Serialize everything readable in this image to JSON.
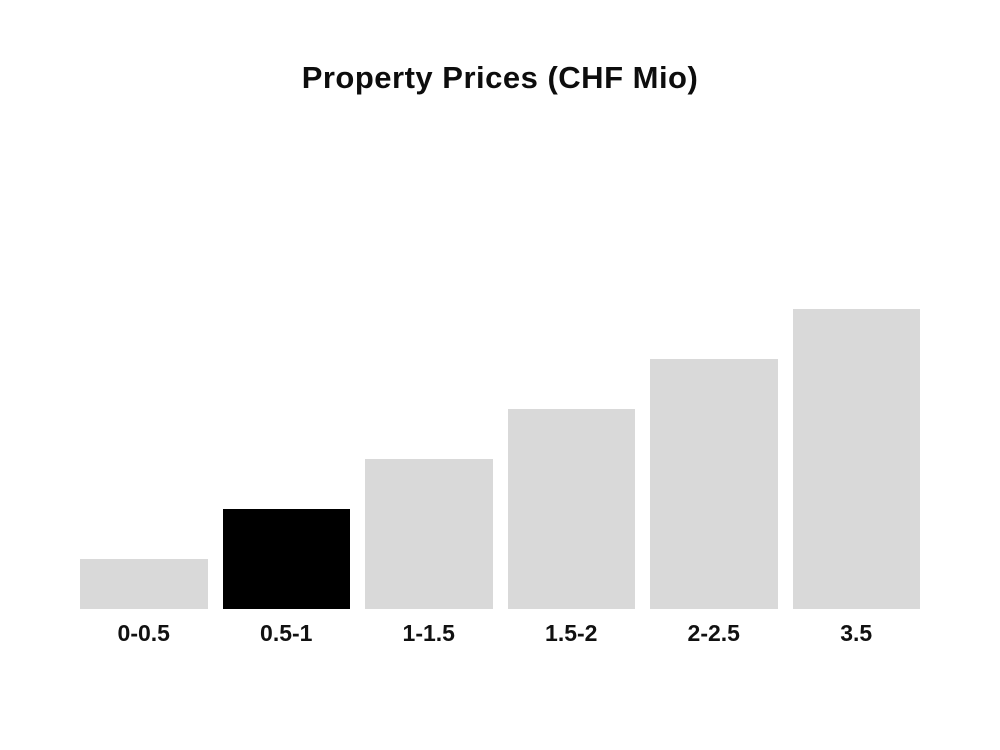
{
  "chart_data": {
    "type": "bar",
    "title": "Property Prices (CHF Mio)",
    "categories": [
      "0-0.5",
      "0.5-1",
      "1-1.5",
      "1.5-2",
      "2-2.5",
      "3.5"
    ],
    "values": [
      1,
      2,
      3,
      4,
      5,
      6
    ],
    "selected_index": 1,
    "selected_category": "0.5-1",
    "bar_color": "#d9d9d9",
    "selected_bar_color": "#000000",
    "background_color": "#ffffff",
    "xlabel": "",
    "ylabel": "",
    "ylim": [
      0,
      6
    ],
    "grid": false,
    "legend": false,
    "y_axis_shown": false,
    "note": "values are relative bar heights; no numeric axis is displayed"
  }
}
